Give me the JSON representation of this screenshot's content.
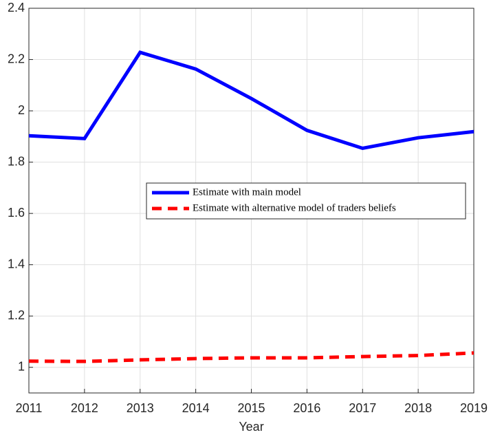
{
  "chart_data": {
    "type": "line",
    "x_label": "Year",
    "x": [
      2011,
      2012,
      2013,
      2014,
      2015,
      2016,
      2017,
      2018,
      2019
    ],
    "series": [
      {
        "name": "Estimate with main model",
        "color": "#0000ff",
        "style": "solid",
        "values": [
          1.903,
          1.892,
          2.228,
          2.163,
          2.048,
          1.924,
          1.854,
          1.895,
          1.919
        ]
      },
      {
        "name": "Estimate with alternative model of traders beliefs",
        "color": "#ff0000",
        "style": "dashed",
        "values": [
          1.024,
          1.023,
          1.029,
          1.034,
          1.037,
          1.037,
          1.042,
          1.046,
          1.056
        ]
      }
    ],
    "xlim": [
      2011,
      2019
    ],
    "xticks": [
      2011,
      2012,
      2013,
      2014,
      2015,
      2016,
      2017,
      2018,
      2019
    ],
    "ylim": [
      0.9,
      2.4
    ],
    "yticks": [
      1,
      1.2,
      1.4,
      1.6,
      1.8,
      2,
      2.2,
      2.4
    ],
    "grid": true,
    "legend": "east"
  }
}
